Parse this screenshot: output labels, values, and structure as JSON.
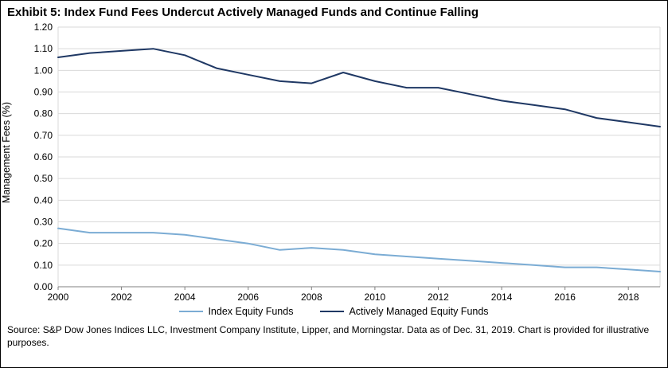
{
  "title": "Exhibit 5: Index Fund Fees Undercut Actively Managed Funds and Continue Falling",
  "source": "Source: S&P Dow Jones Indices LLC, Investment Company Institute, Lipper, and Morningstar. Data as of Dec. 31, 2019. Chart is provided for illustrative purposes.",
  "legend": [
    {
      "label": "Index Equity Funds",
      "color": "#7bacd4"
    },
    {
      "label": "Actively Managed Equity Funds",
      "color": "#1f3864"
    }
  ],
  "colors": {
    "gridline": "#d9d9d9",
    "axis": "#808080",
    "index_series": "#7bacd4",
    "active_series": "#1f3864"
  },
  "chart_data": {
    "type": "line",
    "title": "Exhibit 5: Index Fund Fees Undercut Actively Managed Funds and Continue Falling",
    "xlabel": "",
    "ylabel": "Management Fees (%)",
    "ylim": [
      0.0,
      1.2
    ],
    "xlim": [
      2000,
      2019
    ],
    "grid": "horizontal",
    "legend_position": "bottom",
    "y_ticks": [
      "1.20",
      "1.10",
      "1.00",
      "0.90",
      "0.80",
      "0.70",
      "0.60",
      "0.50",
      "0.40",
      "0.30",
      "0.20",
      "0.10",
      "0.00"
    ],
    "x_ticks": [
      2000,
      2002,
      2004,
      2006,
      2008,
      2010,
      2012,
      2014,
      2016,
      2018
    ],
    "x": [
      2000,
      2001,
      2002,
      2003,
      2004,
      2005,
      2006,
      2007,
      2008,
      2009,
      2010,
      2011,
      2012,
      2013,
      2014,
      2015,
      2016,
      2017,
      2018,
      2019
    ],
    "series": [
      {
        "name": "Index Equity Funds",
        "color": "#7bacd4",
        "values": [
          0.27,
          0.25,
          0.25,
          0.25,
          0.24,
          0.22,
          0.2,
          0.17,
          0.18,
          0.17,
          0.15,
          0.14,
          0.13,
          0.12,
          0.11,
          0.1,
          0.09,
          0.09,
          0.08,
          0.07
        ]
      },
      {
        "name": "Actively Managed Equity Funds",
        "color": "#1f3864",
        "values": [
          1.06,
          1.08,
          1.09,
          1.1,
          1.07,
          1.01,
          0.98,
          0.95,
          0.94,
          0.99,
          0.95,
          0.92,
          0.92,
          0.89,
          0.86,
          0.84,
          0.82,
          0.78,
          0.76,
          0.74
        ]
      }
    ]
  }
}
